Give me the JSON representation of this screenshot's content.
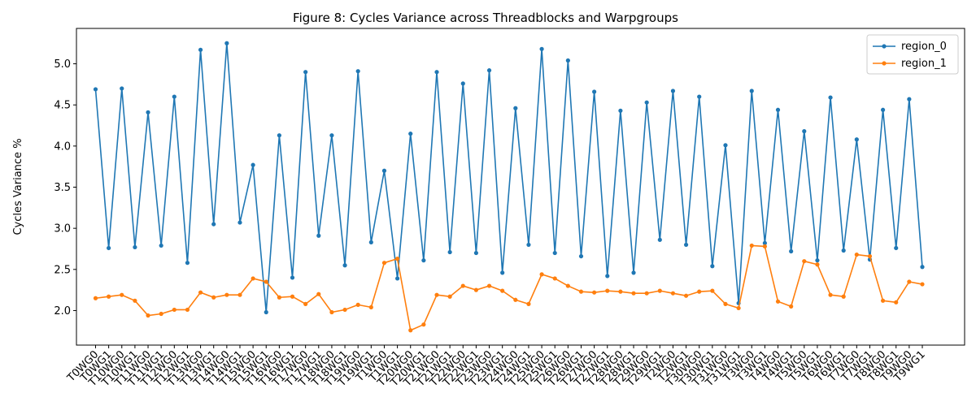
{
  "chart_data": {
    "type": "line",
    "title": "Figure 8: Cycles Variance across Threadblocks and Warpgroups",
    "xlabel": "",
    "ylabel": "Cycles Variance %",
    "ylim": [
      1.58,
      5.43
    ],
    "yticks": [
      2.0,
      2.5,
      3.0,
      3.5,
      4.0,
      4.5,
      5.0
    ],
    "grid": false,
    "legend_position": "top-right",
    "categories": [
      "T0WG0",
      "T0WG1",
      "T10WG0",
      "T10WG1",
      "T11WG0",
      "T11WG1",
      "T12WG0",
      "T12WG1",
      "T13WG0",
      "T13WG1",
      "T14WG0",
      "T14WG1",
      "T15WG0",
      "T15WG1",
      "T16WG0",
      "T16WG1",
      "T17WG0",
      "T17WG1",
      "T18WG0",
      "T18WG1",
      "T19WG0",
      "T19WG1",
      "T1WG0",
      "T1WG1",
      "T20WG0",
      "T20WG1",
      "T21WG0",
      "T21WG1",
      "T22WG0",
      "T22WG1",
      "T23WG0",
      "T23WG1",
      "T24WG0",
      "T24WG1",
      "T25WG0",
      "T25WG1",
      "T26WG0",
      "T26WG1",
      "T27WG0",
      "T27WG1",
      "T28WG0",
      "T28WG1",
      "T29WG0",
      "T29WG1",
      "T2WG0",
      "T2WG1",
      "T30WG0",
      "T30WG1",
      "T31WG0",
      "T31WG1",
      "T3WG0",
      "T3WG1",
      "T4WG0",
      "T4WG1",
      "T5WG0",
      "T5WG1",
      "T6WG0",
      "T6WG1",
      "T7WG0",
      "T7WG1",
      "T8WG0",
      "T8WG1",
      "T9WG0",
      "T9WG1"
    ],
    "series": [
      {
        "name": "region_0",
        "color": "#1f77b4",
        "values": [
          4.69,
          2.76,
          4.7,
          2.77,
          4.41,
          2.79,
          4.6,
          2.58,
          5.17,
          3.05,
          5.25,
          3.07,
          3.77,
          1.98,
          4.13,
          2.4,
          4.9,
          2.91,
          4.13,
          2.55,
          4.91,
          2.83,
          3.7,
          2.39,
          4.15,
          2.61,
          4.9,
          2.71,
          4.76,
          2.7,
          4.92,
          2.46,
          4.46,
          2.8,
          5.18,
          2.7,
          5.04,
          2.66,
          4.66,
          2.42,
          4.43,
          2.46,
          4.53,
          2.86,
          4.67,
          2.8,
          4.6,
          2.54,
          4.01,
          2.09,
          4.67,
          2.82,
          4.44,
          2.72,
          4.18,
          2.61,
          4.59,
          2.73,
          4.08,
          2.62,
          4.44,
          2.76,
          4.57,
          2.53
        ]
      },
      {
        "name": "region_1",
        "color": "#ff7f0e",
        "values": [
          2.15,
          2.17,
          2.19,
          2.12,
          1.94,
          1.96,
          2.01,
          2.01,
          2.22,
          2.16,
          2.19,
          2.19,
          2.39,
          2.35,
          2.16,
          2.17,
          2.08,
          2.2,
          1.98,
          2.01,
          2.07,
          2.04,
          2.58,
          2.63,
          1.76,
          1.83,
          2.19,
          2.17,
          2.3,
          2.25,
          2.3,
          2.24,
          2.13,
          2.08,
          2.44,
          2.39,
          2.3,
          2.23,
          2.22,
          2.24,
          2.23,
          2.21,
          2.21,
          2.24,
          2.21,
          2.18,
          2.23,
          2.24,
          2.08,
          2.03,
          2.79,
          2.78,
          2.11,
          2.05,
          2.6,
          2.56,
          2.19,
          2.17,
          2.68,
          2.66,
          2.12,
          2.1,
          2.35,
          2.32
        ]
      }
    ]
  }
}
